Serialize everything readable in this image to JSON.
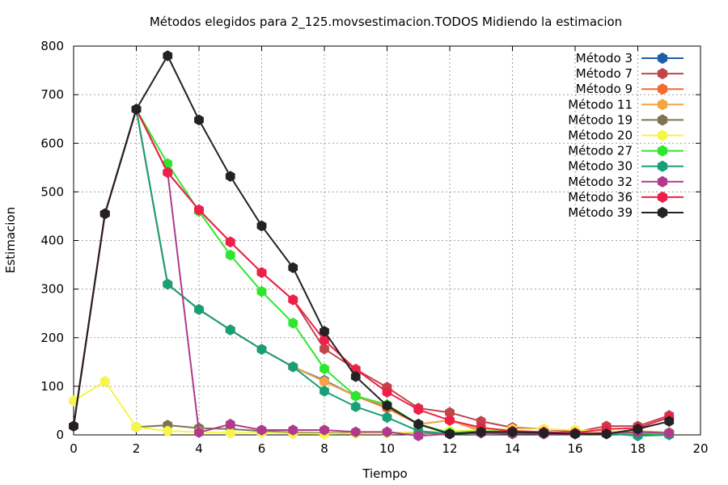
{
  "chart_data": {
    "type": "line",
    "title": "Métodos elegidos para 2_125.movsestimacion.TODOS Midiendo la estimacion",
    "xlabel": "Tiempo",
    "ylabel": "Estimacion",
    "xlim": [
      0,
      20
    ],
    "ylim": [
      0,
      800
    ],
    "xticks": [
      0,
      2,
      4,
      6,
      8,
      10,
      12,
      14,
      16,
      18,
      20
    ],
    "yticks": [
      0,
      100,
      200,
      300,
      400,
      500,
      600,
      700,
      800
    ],
    "grid": true,
    "legend_position": "top-right",
    "series": [
      {
        "name": "Método 3",
        "color": "#1f5fa8",
        "x": [
          0,
          1,
          2,
          3,
          4,
          5,
          6,
          7,
          8,
          9,
          10,
          11,
          12,
          13,
          14,
          15,
          16,
          17,
          18,
          19
        ],
        "values": [
          18,
          455,
          670,
          310,
          258,
          216,
          176,
          140,
          112,
          80,
          60,
          22,
          4,
          8,
          6,
          4,
          2,
          3,
          5,
          3
        ]
      },
      {
        "name": "Método 7",
        "color": "#c0454a",
        "x": [
          0,
          1,
          2,
          3,
          4,
          5,
          6,
          7,
          8,
          9,
          10,
          11,
          12,
          13,
          14,
          15,
          16,
          17,
          18,
          19
        ],
        "values": [
          18,
          455,
          670,
          540,
          463,
          397,
          334,
          278,
          177,
          135,
          98,
          55,
          46,
          28,
          15,
          12,
          6,
          18,
          18,
          40
        ]
      },
      {
        "name": "Método 9",
        "color": "#f26b2d",
        "x": [
          0,
          1,
          2,
          3,
          4,
          5,
          6,
          7,
          8,
          9,
          10,
          11,
          12,
          13,
          14,
          15,
          16,
          17,
          18,
          19
        ],
        "values": [
          18,
          455,
          670,
          310,
          258,
          216,
          176,
          140,
          110,
          80,
          55,
          22,
          30,
          8,
          6,
          4,
          2,
          3,
          5,
          3
        ]
      },
      {
        "name": "Método 11",
        "color": "#f5a442",
        "x": [
          0,
          1,
          2,
          3,
          4,
          5,
          6,
          7,
          8,
          9,
          10,
          11,
          12,
          13,
          14,
          15,
          16,
          17,
          18,
          19
        ],
        "values": [
          18,
          455,
          670,
          310,
          258,
          216,
          176,
          140,
          110,
          80,
          60,
          22,
          30,
          10,
          8,
          6,
          4,
          5,
          8,
          5
        ]
      },
      {
        "name": "Método 19",
        "color": "#7d7452",
        "x": [
          2,
          3,
          4,
          5,
          6,
          7,
          8,
          9,
          10,
          11,
          12,
          13,
          14,
          15,
          16,
          17,
          18,
          19
        ],
        "values": [
          16,
          20,
          14,
          12,
          8,
          5,
          4,
          4,
          5,
          4,
          3,
          4,
          2,
          3,
          2,
          2,
          3,
          2
        ]
      },
      {
        "name": "Método 20",
        "color": "#f5f54a",
        "x": [
          0,
          1,
          2,
          3,
          4,
          5,
          6,
          7,
          8,
          9,
          10,
          11,
          12,
          13,
          14,
          15,
          16,
          17,
          18,
          19
        ],
        "values": [
          70,
          110,
          16,
          8,
          6,
          4,
          5,
          3,
          2,
          3,
          4,
          6,
          8,
          10,
          12,
          12,
          10,
          8,
          6,
          4
        ]
      },
      {
        "name": "Método 27",
        "color": "#2ee62e",
        "x": [
          0,
          1,
          2,
          3,
          4,
          5,
          6,
          7,
          8,
          9,
          10,
          11,
          12,
          13,
          14,
          15,
          16,
          17,
          18,
          19
        ],
        "values": [
          18,
          455,
          670,
          558,
          460,
          370,
          295,
          230,
          136,
          80,
          62,
          22,
          4,
          8,
          6,
          4,
          2,
          3,
          2,
          3
        ]
      },
      {
        "name": "Método 30",
        "color": "#17a077",
        "x": [
          0,
          1,
          2,
          3,
          4,
          5,
          6,
          7,
          8,
          9,
          10,
          11,
          12,
          13,
          14,
          15,
          16,
          17,
          18,
          19
        ],
        "values": [
          18,
          455,
          670,
          310,
          258,
          216,
          176,
          140,
          90,
          58,
          36,
          8,
          2,
          4,
          3,
          2,
          2,
          3,
          -2,
          0
        ]
      },
      {
        "name": "Método 32",
        "color": "#b03a8e",
        "x": [
          0,
          1,
          2,
          3,
          4,
          5,
          6,
          7,
          8,
          9,
          10,
          11,
          12,
          13,
          14,
          15,
          16,
          17,
          18,
          19
        ],
        "values": [
          18,
          455,
          670,
          540,
          5,
          22,
          10,
          10,
          10,
          6,
          6,
          -2,
          2,
          4,
          3,
          2,
          2,
          4,
          6,
          4
        ]
      },
      {
        "name": "Método 36",
        "color": "#ee2048",
        "x": [
          0,
          1,
          2,
          3,
          4,
          5,
          6,
          7,
          8,
          9,
          10,
          11,
          12,
          13,
          14,
          15,
          16,
          17,
          18,
          19
        ],
        "values": [
          18,
          455,
          670,
          540,
          463,
          397,
          334,
          278,
          195,
          135,
          88,
          52,
          30,
          15,
          8,
          6,
          4,
          12,
          14,
          36
        ]
      },
      {
        "name": "Método 39",
        "color": "#222222",
        "x": [
          0,
          1,
          2,
          3,
          4,
          5,
          6,
          7,
          8,
          9,
          10,
          11,
          12,
          13,
          14,
          15,
          16,
          17,
          18,
          19
        ],
        "values": [
          18,
          455,
          670,
          780,
          648,
          532,
          430,
          344,
          213,
          120,
          60,
          22,
          2,
          6,
          6,
          4,
          2,
          2,
          12,
          28
        ]
      }
    ]
  }
}
